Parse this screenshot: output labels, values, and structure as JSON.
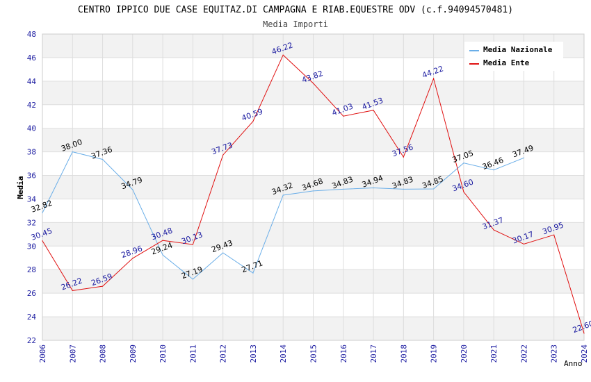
{
  "chart_data": {
    "type": "line",
    "title": "CENTRO IPPICO DUE CASE EQUITAZ.DI CAMPAGNA E RIAB.EQUESTRE ODV (c.f.94094570481)",
    "subtitle": "Media Importi",
    "xlabel": "Anno",
    "ylabel": "Media",
    "ylim": [
      22,
      48
    ],
    "yticks": [
      "22",
      "24",
      "26",
      "28",
      "30",
      "32",
      "34",
      "36",
      "38",
      "40",
      "42",
      "44",
      "46",
      "48"
    ],
    "categories": [
      "2006",
      "2007",
      "2008",
      "2009",
      "2010",
      "2011",
      "2012",
      "2013",
      "2014",
      "2015",
      "2016",
      "2017",
      "2018",
      "2019",
      "2020",
      "2021",
      "2022",
      "2023",
      "2024"
    ],
    "grid": true,
    "legend_position": "top-right",
    "series": [
      {
        "name": "Media Nazionale",
        "color": "#6aaee8",
        "label_color": "#000000",
        "values": [
          32.82,
          38.0,
          37.36,
          34.79,
          29.24,
          27.19,
          29.43,
          27.71,
          34.32,
          34.68,
          34.83,
          34.94,
          34.83,
          34.85,
          37.05,
          36.46,
          37.49,
          null,
          null
        ],
        "labels": [
          "32.82",
          "38.00",
          "37.36",
          "34.79",
          "29.24",
          "27.19",
          "29.43",
          "27.71",
          "34.32",
          "34.68",
          "34.83",
          "34.94",
          "34.83",
          "34.85",
          "37.05",
          "36.46",
          "37.49",
          null,
          null
        ]
      },
      {
        "name": "Media Ente",
        "color": "#e01010",
        "label_color": "#1a1aa0",
        "values": [
          30.45,
          26.22,
          26.59,
          28.96,
          30.48,
          30.13,
          37.73,
          40.59,
          46.22,
          43.82,
          41.03,
          41.53,
          37.56,
          44.22,
          34.6,
          31.37,
          30.17,
          30.95,
          22.6
        ],
        "labels": [
          "30.45",
          "26.22",
          "26.59",
          "28.96",
          "30.48",
          "30.13",
          "37.73",
          "40.59",
          "46.22",
          "43.82",
          "41.03",
          "41.53",
          "37.56",
          "44.22",
          "34.60",
          "31.37",
          "30.17",
          "30.95",
          "22.60"
        ]
      }
    ]
  },
  "colors": {
    "axis_text": "#1a1aa0",
    "band": "#f2f2f2",
    "grid": "#dddddd"
  }
}
